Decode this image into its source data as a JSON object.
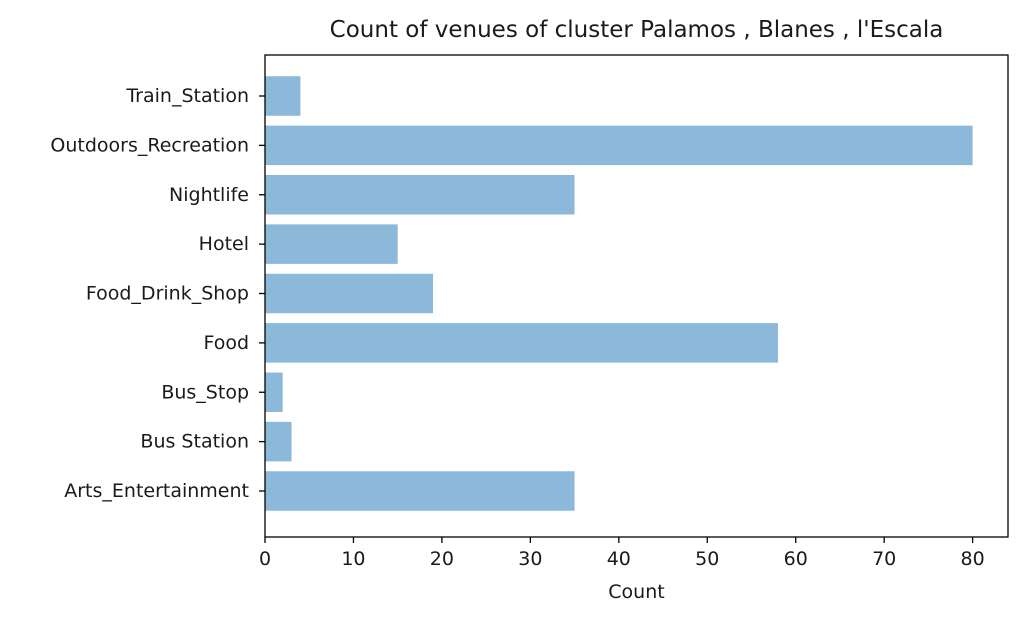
{
  "chart_data": {
    "type": "bar",
    "orientation": "horizontal",
    "title": "Count of venues of cluster Palamos , Blanes , l'Escala",
    "xlabel": "Count",
    "ylabel": "",
    "categories": [
      "Arts_Entertainment",
      "Bus Station",
      "Bus_Stop",
      "Food",
      "Food_Drink_Shop",
      "Hotel",
      "Nightlife",
      "Outdoors_Recreation",
      "Train_Station"
    ],
    "values": [
      35,
      3,
      2,
      58,
      19,
      15,
      35,
      80,
      4
    ],
    "xlim": [
      0,
      84
    ],
    "xticks": [
      0,
      10,
      20,
      30,
      40,
      50,
      60,
      70,
      80
    ],
    "grid": false,
    "legend": "none",
    "bar_color": "#8cb9da"
  }
}
